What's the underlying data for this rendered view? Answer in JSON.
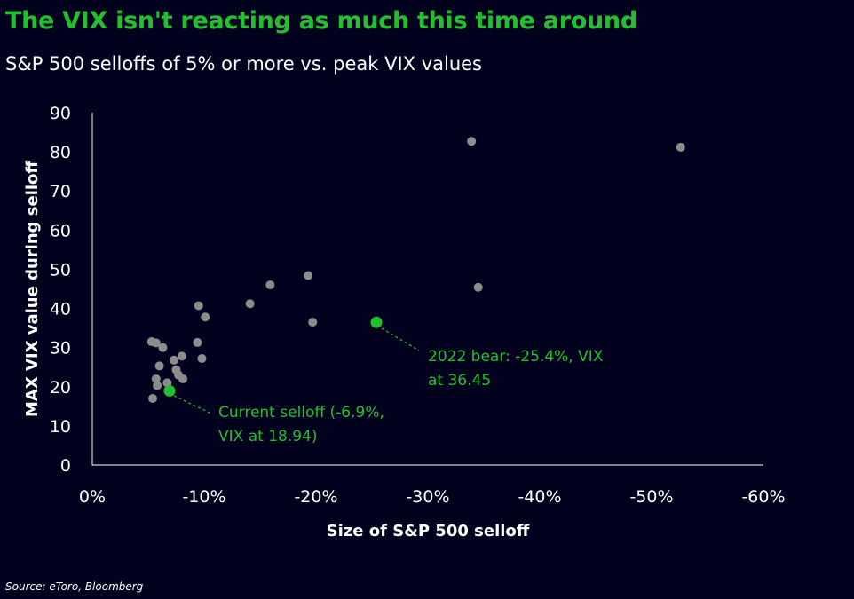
{
  "title": "The VIX isn't reacting as much this time around",
  "subtitle": "S&P 500 selloffs of 5% or more vs. peak VIX values",
  "source": "Source: eToro, Bloomberg",
  "colors": {
    "background": "#02021e",
    "accent": "#22c02f",
    "point": "#8c8c8c",
    "axis": "#ffffff"
  },
  "chart_data": {
    "type": "scatter",
    "title": "The VIX isn't reacting as much this time around",
    "subtitle": "S&P 500 selloffs of 5% or more vs. peak VIX values",
    "xlabel": "Size of S&P 500 selloff",
    "ylabel": "MAX VIX value during selloff",
    "xlim": [
      0,
      -60
    ],
    "ylim": [
      0,
      90
    ],
    "x_ticks": [
      0,
      -10,
      -20,
      -30,
      -40,
      -50,
      -60
    ],
    "x_tick_labels": [
      "0%",
      "-10%",
      "-20%",
      "-30%",
      "-40%",
      "-50%",
      "-60%"
    ],
    "y_ticks": [
      0,
      10,
      20,
      30,
      40,
      50,
      60,
      70,
      80,
      90
    ],
    "y_tick_labels": [
      "0",
      "10",
      "20",
      "30",
      "40",
      "50",
      "60",
      "70",
      "80",
      "90"
    ],
    "grid": false,
    "legend": "none",
    "points": [
      {
        "x": -5.3,
        "y": 31.5
      },
      {
        "x": -5.7,
        "y": 31.2
      },
      {
        "x": -6.3,
        "y": 30.0
      },
      {
        "x": -5.4,
        "y": 17.0
      },
      {
        "x": -5.7,
        "y": 22.0
      },
      {
        "x": -5.8,
        "y": 20.3
      },
      {
        "x": -6.0,
        "y": 25.3
      },
      {
        "x": -6.7,
        "y": 21.0
      },
      {
        "x": -7.3,
        "y": 26.8
      },
      {
        "x": -7.5,
        "y": 24.3
      },
      {
        "x": -7.7,
        "y": 23.0
      },
      {
        "x": -8.0,
        "y": 27.8
      },
      {
        "x": -8.1,
        "y": 22.0
      },
      {
        "x": -9.4,
        "y": 31.3
      },
      {
        "x": -9.5,
        "y": 40.7
      },
      {
        "x": -9.8,
        "y": 27.2
      },
      {
        "x": -10.1,
        "y": 37.8
      },
      {
        "x": -14.1,
        "y": 41.2
      },
      {
        "x": -15.9,
        "y": 46.0
      },
      {
        "x": -19.3,
        "y": 48.4
      },
      {
        "x": -19.7,
        "y": 36.5
      },
      {
        "x": -33.9,
        "y": 82.7
      },
      {
        "x": -34.5,
        "y": 45.4
      },
      {
        "x": -52.6,
        "y": 81.2
      }
    ],
    "highlights": [
      {
        "x": -6.9,
        "y": 18.94,
        "label_lines": [
          "Current selloff (-6.9%,",
          "VIX at 18.94)"
        ]
      },
      {
        "x": -25.4,
        "y": 36.45,
        "label_lines": [
          "2022 bear: -25.4%, VIX",
          "at 36.45"
        ]
      }
    ]
  }
}
